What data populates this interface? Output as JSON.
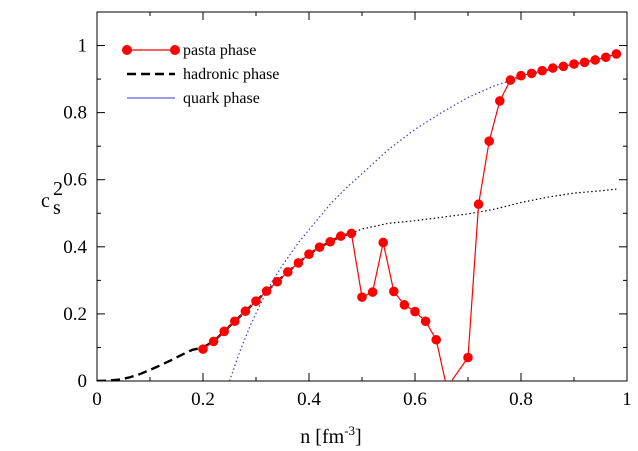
{
  "chart_data": {
    "type": "line",
    "xlabel": "n [fm",
    "xlabel_sup": "-3",
    "xlabel_close": "]",
    "ylabel": "c",
    "ylabel_sup": "2",
    "ylabel_sub": "s",
    "xlim": [
      0,
      1
    ],
    "ylim": [
      0,
      1.1
    ],
    "x_ticks": [
      0,
      0.2,
      0.4,
      0.6,
      0.8,
      1
    ],
    "x_tick_labels": [
      "0",
      "0.2",
      "0.4",
      "0.6",
      "0.8",
      "1"
    ],
    "y_ticks": [
      0,
      0.2,
      0.4,
      0.6,
      0.8,
      1
    ],
    "y_tick_labels": [
      "0",
      "0.2",
      "0.4",
      "0.6",
      "0.8",
      "1"
    ],
    "grid": false,
    "legend_position": "top-left",
    "series": [
      {
        "name": "pasta phase",
        "style": "solid-markers",
        "color": "#ff0000",
        "marker_color": "#ff0000",
        "x": [
          0.2,
          0.22,
          0.24,
          0.26,
          0.28,
          0.3,
          0.32,
          0.34,
          0.36,
          0.38,
          0.4,
          0.42,
          0.44,
          0.46,
          0.48,
          0.5,
          0.52,
          0.54,
          0.56,
          0.58,
          0.6,
          0.62,
          0.64,
          0.66,
          0.7,
          0.72,
          0.74,
          0.76,
          0.78,
          0.8,
          0.82,
          0.84,
          0.86,
          0.88,
          0.9,
          0.92,
          0.94,
          0.96,
          0.98
        ],
        "y": [
          0.095,
          0.118,
          0.148,
          0.178,
          0.208,
          0.238,
          0.268,
          0.296,
          0.325,
          0.352,
          0.378,
          0.399,
          0.415,
          0.432,
          0.44,
          0.25,
          0.265,
          0.413,
          0.267,
          0.227,
          0.207,
          0.178,
          0.123,
          -0.02,
          0.07,
          0.527,
          0.715,
          0.835,
          0.897,
          0.91,
          0.917,
          0.925,
          0.933,
          0.938,
          0.945,
          0.95,
          0.957,
          0.965,
          0.975
        ],
        "line_breaks_at": [
          0.66,
          0.68
        ]
      },
      {
        "name": "hadronic phase",
        "style": "dashed",
        "color": "#000000",
        "x": [
          0.0,
          0.02,
          0.04,
          0.06,
          0.08,
          0.1,
          0.12,
          0.14,
          0.16,
          0.18,
          0.2,
          0.22,
          0.24,
          0.26,
          0.28,
          0.3,
          0.32,
          0.34,
          0.36,
          0.38,
          0.4,
          0.42,
          0.44,
          0.46,
          0.48
        ],
        "y": [
          0.0,
          0.001,
          0.004,
          0.01,
          0.02,
          0.033,
          0.047,
          0.062,
          0.078,
          0.093,
          0.1,
          0.118,
          0.148,
          0.178,
          0.208,
          0.238,
          0.268,
          0.296,
          0.325,
          0.352,
          0.378,
          0.399,
          0.415,
          0.432,
          0.44
        ]
      },
      {
        "name": "quark phase",
        "style": "dotted",
        "color": "#3a3ad0",
        "x": [
          0.25,
          0.27,
          0.29,
          0.31,
          0.33,
          0.35,
          0.38,
          0.41,
          0.44,
          0.47,
          0.5,
          0.55,
          0.6,
          0.65,
          0.7,
          0.75,
          0.78,
          0.8,
          0.85,
          0.9,
          0.95,
          0.98
        ],
        "y": [
          0.0,
          0.09,
          0.168,
          0.235,
          0.295,
          0.345,
          0.412,
          0.47,
          0.527,
          0.575,
          0.618,
          0.69,
          0.75,
          0.8,
          0.845,
          0.88,
          0.895,
          0.905,
          0.925,
          0.945,
          0.962,
          0.975
        ]
      },
      {
        "name": "",
        "style": "dotted",
        "color": "#000000",
        "x": [
          0.48,
          0.5,
          0.55,
          0.6,
          0.65,
          0.7,
          0.75,
          0.8,
          0.85,
          0.9,
          0.95,
          0.98
        ],
        "y": [
          0.44,
          0.453,
          0.47,
          0.478,
          0.488,
          0.498,
          0.512,
          0.532,
          0.548,
          0.56,
          0.567,
          0.572
        ]
      }
    ]
  }
}
